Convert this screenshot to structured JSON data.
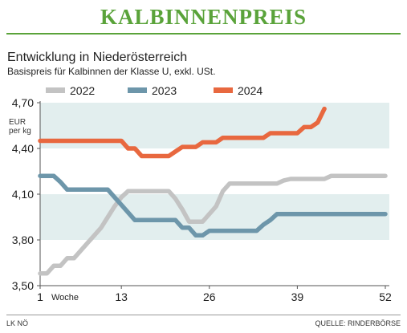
{
  "header": {
    "title": "KALBINNENPREIS",
    "subtitle": "Entwicklung in Niederösterreich",
    "subsubtitle": "Basispreis für Kalbinnen der Klasse U, exkl. USt."
  },
  "colors": {
    "title_green": "#5aa33a",
    "band": "#e2eeee",
    "s2022": "#c3c3c3",
    "s2023": "#6d96aa",
    "s2024": "#e8683f"
  },
  "legend": [
    {
      "label": "2022",
      "color": "#c3c3c3"
    },
    {
      "label": "2023",
      "color": "#6d96aa"
    },
    {
      "label": "2024",
      "color": "#e8683f"
    }
  ],
  "footer": {
    "left": "LK NÖ",
    "right": "QUELLE: RINDERBÖRSE"
  },
  "chart_data": {
    "type": "line",
    "ylabel_lines": [
      "EUR",
      "per kg"
    ],
    "xlabel": "Woche",
    "xlim": [
      1,
      52
    ],
    "ylim": [
      3.5,
      4.7
    ],
    "x_ticks": [
      1,
      13,
      26,
      39,
      52
    ],
    "y_ticks": [
      {
        "value": 3.5,
        "label": "3,50"
      },
      {
        "value": 3.8,
        "label": "3,80"
      },
      {
        "value": 4.1,
        "label": "4,10"
      },
      {
        "value": 4.4,
        "label": "4,40"
      },
      {
        "value": 4.7,
        "label": "4,70"
      }
    ],
    "bands": [
      [
        3.8,
        4.1
      ],
      [
        4.4,
        4.7
      ]
    ],
    "grid": false,
    "legend_position": "top",
    "series": [
      {
        "name": "2022",
        "color": "#c3c3c3",
        "x": [
          1,
          2,
          3,
          4,
          5,
          6,
          7,
          8,
          9,
          10,
          11,
          12,
          13,
          14,
          15,
          16,
          17,
          18,
          19,
          20,
          21,
          22,
          23,
          24,
          25,
          26,
          27,
          28,
          29,
          30,
          31,
          32,
          33,
          34,
          35,
          36,
          37,
          38,
          39,
          40,
          41,
          42,
          43,
          44,
          45,
          46,
          47,
          48,
          49,
          50,
          51,
          52
        ],
        "y": [
          3.58,
          3.58,
          3.63,
          3.63,
          3.68,
          3.68,
          3.73,
          3.78,
          3.83,
          3.88,
          3.95,
          4.02,
          4.08,
          4.12,
          4.12,
          4.12,
          4.12,
          4.12,
          4.12,
          4.12,
          4.07,
          4.0,
          3.92,
          3.92,
          3.92,
          3.97,
          4.02,
          4.12,
          4.17,
          4.17,
          4.17,
          4.17,
          4.17,
          4.17,
          4.17,
          4.17,
          4.19,
          4.2,
          4.2,
          4.2,
          4.2,
          4.2,
          4.2,
          4.22,
          4.22,
          4.22,
          4.22,
          4.22,
          4.22,
          4.22,
          4.22,
          4.22
        ]
      },
      {
        "name": "2023",
        "color": "#6d96aa",
        "x": [
          1,
          2,
          3,
          4,
          5,
          6,
          7,
          8,
          9,
          10,
          11,
          12,
          13,
          14,
          15,
          16,
          17,
          18,
          19,
          20,
          21,
          22,
          23,
          24,
          25,
          26,
          27,
          28,
          29,
          30,
          31,
          32,
          33,
          34,
          35,
          36,
          37,
          38,
          39,
          40,
          41,
          42,
          43,
          44,
          45,
          46,
          47,
          48,
          49,
          50,
          51,
          52
        ],
        "y": [
          4.22,
          4.22,
          4.22,
          4.18,
          4.13,
          4.13,
          4.13,
          4.13,
          4.13,
          4.13,
          4.13,
          4.08,
          4.03,
          3.98,
          3.93,
          3.93,
          3.93,
          3.93,
          3.93,
          3.93,
          3.93,
          3.88,
          3.88,
          3.83,
          3.83,
          3.86,
          3.86,
          3.86,
          3.86,
          3.86,
          3.86,
          3.86,
          3.86,
          3.9,
          3.93,
          3.97,
          3.97,
          3.97,
          3.97,
          3.97,
          3.97,
          3.97,
          3.97,
          3.97,
          3.97,
          3.97,
          3.97,
          3.97,
          3.97,
          3.97,
          3.97,
          3.97
        ]
      },
      {
        "name": "2024",
        "color": "#e8683f",
        "x": [
          1,
          2,
          3,
          4,
          5,
          6,
          7,
          8,
          9,
          10,
          11,
          12,
          13,
          14,
          15,
          16,
          17,
          18,
          19,
          20,
          21,
          22,
          23,
          24,
          25,
          26,
          27,
          28,
          29,
          30,
          31,
          32,
          33,
          34,
          35,
          36,
          37,
          38,
          39,
          40,
          41,
          42,
          43
        ],
        "y": [
          4.45,
          4.45,
          4.45,
          4.45,
          4.45,
          4.45,
          4.45,
          4.45,
          4.45,
          4.45,
          4.45,
          4.45,
          4.45,
          4.4,
          4.4,
          4.35,
          4.35,
          4.35,
          4.35,
          4.35,
          4.38,
          4.41,
          4.41,
          4.41,
          4.44,
          4.44,
          4.44,
          4.47,
          4.47,
          4.47,
          4.47,
          4.47,
          4.47,
          4.47,
          4.5,
          4.5,
          4.5,
          4.5,
          4.5,
          4.54,
          4.54,
          4.57,
          4.66
        ]
      }
    ]
  }
}
